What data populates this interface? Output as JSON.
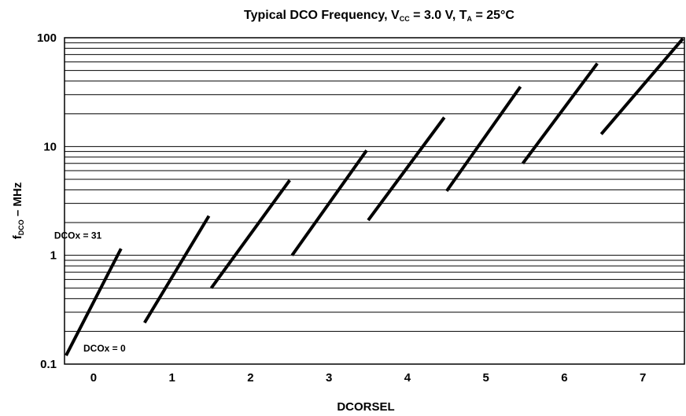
{
  "chart_data": {
    "type": "line",
    "title": {
      "main": "Typical DCO Frequency, V",
      "vcc_sub": "CC",
      "vcc_value": " = 3.0 V, T",
      "ta_sub": "A",
      "ta_value": " = 25°C"
    },
    "xlabel": "DCORSEL",
    "ylabel": {
      "f": "f",
      "sub": "DCO",
      "rest": " – MHz"
    },
    "xlim": [
      -0.37,
      7.53
    ],
    "ylim": [
      0.1,
      100
    ],
    "yscale": "log",
    "grid": true,
    "x_ticks": [
      "0",
      "1",
      "2",
      "3",
      "4",
      "5",
      "6",
      "7"
    ],
    "y_ticks": [
      {
        "value": 0.1,
        "label": "0.1"
      },
      {
        "value": 1,
        "label": "1"
      },
      {
        "value": 10,
        "label": "10"
      },
      {
        "value": 100,
        "label": "100"
      }
    ],
    "series": [
      {
        "dcorsel": 0,
        "x": [
          -0.35,
          0.35
        ],
        "y": [
          0.12,
          1.15
        ]
      },
      {
        "dcorsel": 1,
        "x": [
          0.65,
          1.47
        ],
        "y": [
          0.24,
          2.3
        ]
      },
      {
        "dcorsel": 2,
        "x": [
          1.5,
          2.5
        ],
        "y": [
          0.5,
          4.9
        ]
      },
      {
        "dcorsel": 3,
        "x": [
          2.53,
          3.48
        ],
        "y": [
          1.0,
          9.2
        ]
      },
      {
        "dcorsel": 4,
        "x": [
          3.5,
          4.47
        ],
        "y": [
          2.1,
          18.5
        ]
      },
      {
        "dcorsel": 5,
        "x": [
          4.5,
          5.44
        ],
        "y": [
          3.9,
          35.5
        ]
      },
      {
        "dcorsel": 6,
        "x": [
          5.47,
          6.42
        ],
        "y": [
          7.0,
          58
        ]
      },
      {
        "dcorsel": 7,
        "x": [
          6.47,
          7.51
        ],
        "y": [
          13,
          98
        ]
      }
    ],
    "annotations": [
      {
        "text": "DCOx = 31",
        "near_series": 0,
        "position": "above-end"
      },
      {
        "text": "DCOx = 0",
        "near_series": 0,
        "position": "right-start"
      }
    ]
  }
}
